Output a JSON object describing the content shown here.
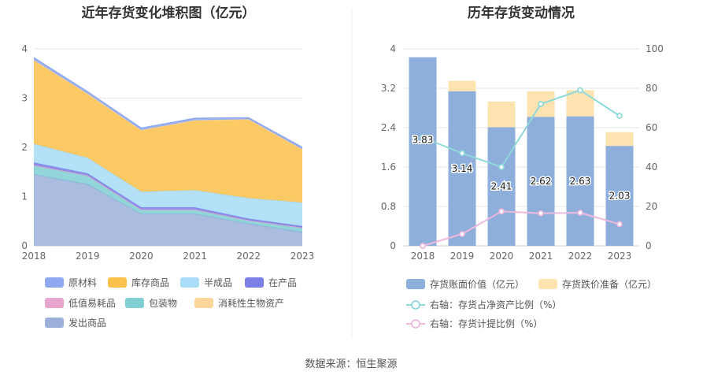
{
  "left_chart": {
    "title": "近年存货变化堆积图（亿元）",
    "y_ticks": [
      "0",
      "1",
      "2",
      "3",
      "4"
    ],
    "x_ticks": [
      "2018",
      "2019",
      "2020",
      "2021",
      "2022",
      "2023"
    ]
  },
  "right_chart": {
    "title": "历年存货变动情况",
    "y_left_ticks": [
      "0",
      "0.8",
      "1.6",
      "2.4",
      "3.2",
      "4"
    ],
    "y_right_ticks": [
      "0",
      "20",
      "40",
      "60",
      "80",
      "100"
    ],
    "x_ticks": [
      "2018",
      "2019",
      "2020",
      "2021",
      "2022",
      "2023"
    ]
  },
  "source": "数据来源：恒生聚源",
  "chart_data": [
    {
      "type": "area",
      "stacked": true,
      "title": "近年存货变化堆积图（亿元）",
      "x": [
        "2018",
        "2019",
        "2020",
        "2021",
        "2022",
        "2023"
      ],
      "ylim": [
        0,
        4
      ],
      "grid": true,
      "legend_position": "bottom",
      "series": [
        {
          "name": "发出商品",
          "color": "#9bb1db",
          "values": [
            1.45,
            1.25,
            0.65,
            0.65,
            0.45,
            0.28
          ]
        },
        {
          "name": "包装物",
          "color": "#7fcfd4",
          "values": [
            0.18,
            0.17,
            0.08,
            0.08,
            0.06,
            0.08
          ]
        },
        {
          "name": "低值易耗品",
          "color": "#e8a6cf",
          "values": [
            0.01,
            0.01,
            0.01,
            0.01,
            0.01,
            0.01
          ]
        },
        {
          "name": "在产品",
          "color": "#7b7fe6",
          "values": [
            0.05,
            0.04,
            0.04,
            0.04,
            0.03,
            0.03
          ]
        },
        {
          "name": "半成品",
          "color": "#a8dcf7",
          "values": [
            0.38,
            0.32,
            0.32,
            0.35,
            0.42,
            0.48
          ]
        },
        {
          "name": "库存商品",
          "color": "#fbc14a",
          "values": [
            1.7,
            1.3,
            1.25,
            1.42,
            1.6,
            1.08
          ]
        },
        {
          "name": "消耗性生物资产",
          "color": "#fdd49a",
          "values": [
            0.0,
            0.0,
            0.0,
            0.0,
            0.0,
            0.0
          ]
        },
        {
          "name": "原材料",
          "color": "#8ea8f2",
          "values": [
            0.05,
            0.04,
            0.04,
            0.04,
            0.03,
            0.04
          ]
        }
      ],
      "legend_order": [
        "原材料",
        "库存商品",
        "半成品",
        "在产品",
        "低值易耗品",
        "包装物",
        "消耗性生物资产",
        "发出商品"
      ]
    },
    {
      "type": "bar",
      "stacked": true,
      "title": "历年存货变动情况",
      "categories": [
        "2018",
        "2019",
        "2020",
        "2021",
        "2022",
        "2023"
      ],
      "ylim": [
        0,
        4
      ],
      "y2lim": [
        0,
        100
      ],
      "grid": true,
      "legend_position": "bottom",
      "series": [
        {
          "name": "存货账面价值（亿元）",
          "color": "#8eaedb",
          "axis": "left",
          "kind": "bar",
          "values": [
            3.83,
            3.14,
            2.41,
            2.62,
            2.63,
            2.03
          ],
          "labels": [
            "3.83",
            "3.14",
            "2.41",
            "2.62",
            "2.63",
            "2.03"
          ]
        },
        {
          "name": "存货跌价准备（亿元）",
          "color": "#fde3b0",
          "axis": "left",
          "kind": "bar",
          "values": [
            0.0,
            0.21,
            0.52,
            0.52,
            0.53,
            0.28
          ]
        },
        {
          "name": "右轴：存货占净资产比例（%）",
          "color": "#8fd9da",
          "axis": "right",
          "kind": "line",
          "values": [
            55,
            47,
            40,
            72,
            79,
            66
          ]
        },
        {
          "name": "右轴：存货计提比例（%）",
          "color": "#efb8dd",
          "axis": "right",
          "kind": "line",
          "values": [
            0,
            6,
            17.5,
            16.5,
            16.8,
            11
          ]
        }
      ]
    }
  ]
}
